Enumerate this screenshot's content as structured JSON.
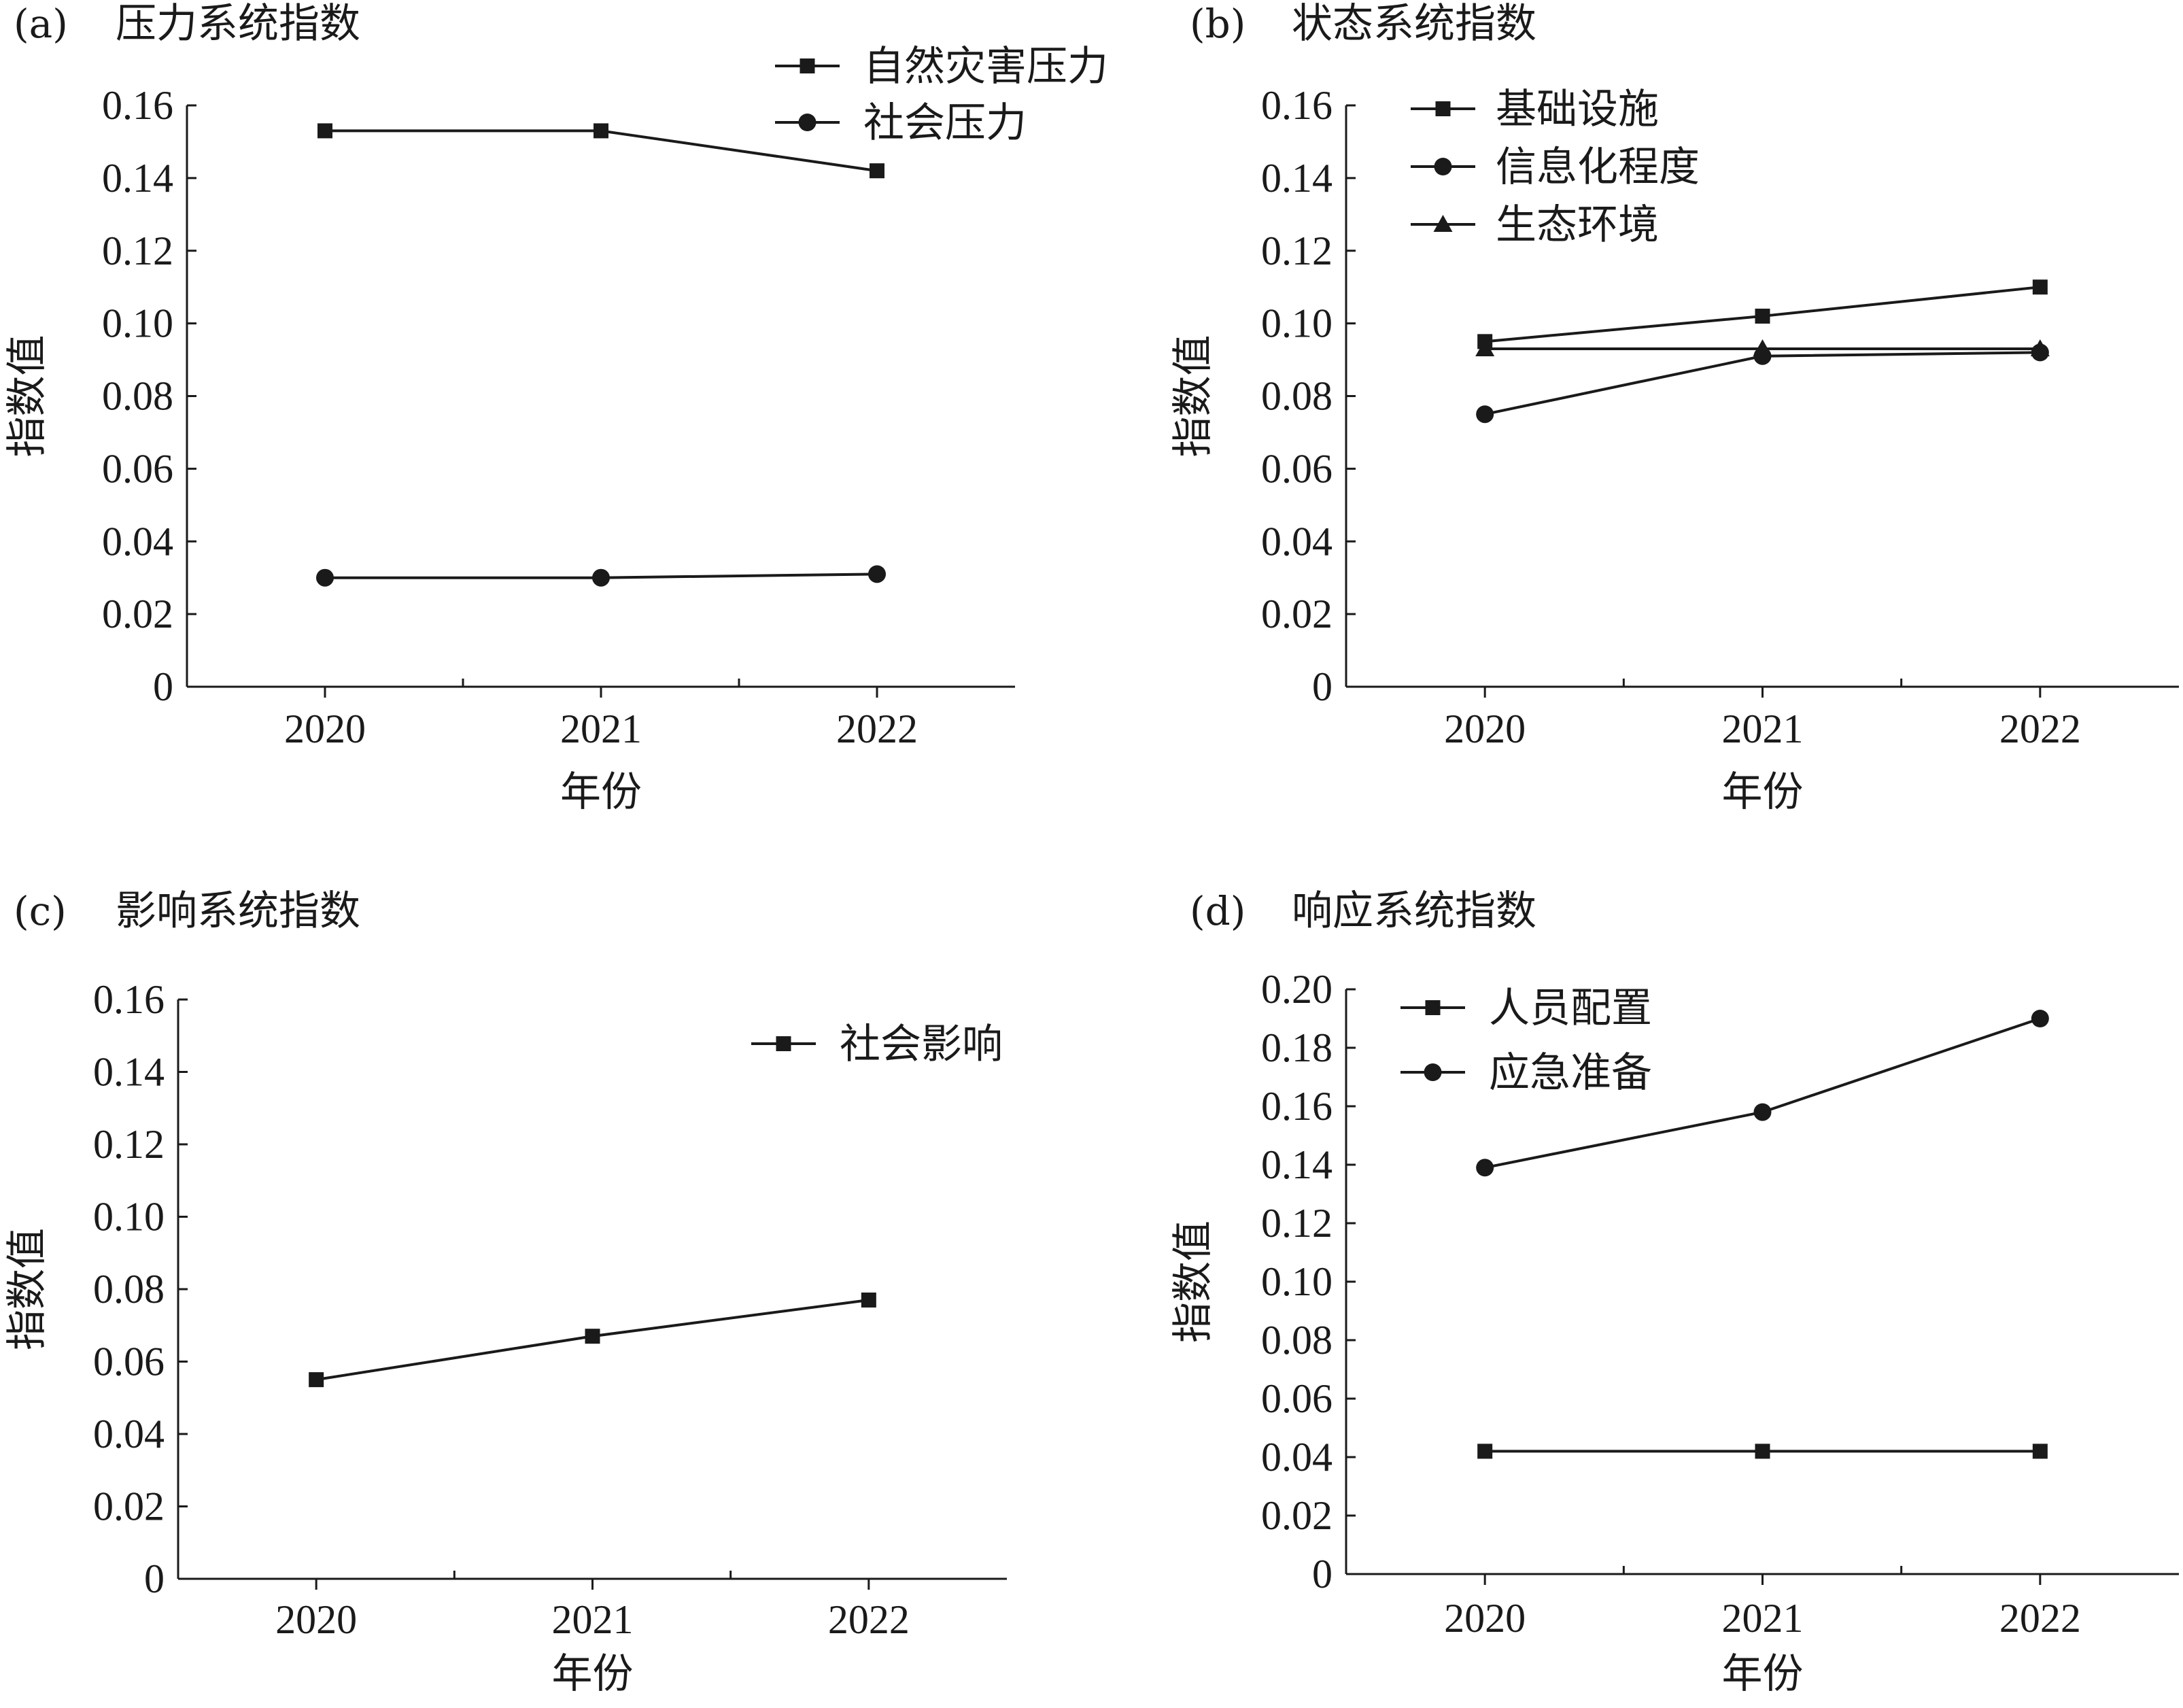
{
  "chart_data": [
    {
      "type": "line",
      "panel_letter": "(a)",
      "title": "压力系统指数",
      "xlabel": "年份",
      "ylabel": "指数值",
      "categories": [
        "2020",
        "2021",
        "2022"
      ],
      "yticks": [
        "0",
        "0.02",
        "0.04",
        "0.06",
        "0.08",
        "0.10",
        "0.12",
        "0.14",
        "0.16"
      ],
      "ylim": [
        0,
        0.16
      ],
      "legend_position": "top-right",
      "series": [
        {
          "name": "自然灾害压力",
          "marker": "square",
          "values": [
            0.153,
            0.153,
            0.142
          ]
        },
        {
          "name": "社会压力",
          "marker": "circle",
          "values": [
            0.03,
            0.03,
            0.031
          ]
        }
      ]
    },
    {
      "type": "line",
      "panel_letter": "(b)",
      "title": "状态系统指数",
      "xlabel": "年份",
      "ylabel": "指数值",
      "categories": [
        "2020",
        "2021",
        "2022"
      ],
      "yticks": [
        "0",
        "0.02",
        "0.04",
        "0.06",
        "0.08",
        "0.10",
        "0.12",
        "0.14",
        "0.16"
      ],
      "ylim": [
        0,
        0.16
      ],
      "legend_position": "top-left",
      "series": [
        {
          "name": "基础设施",
          "marker": "square",
          "values": [
            0.095,
            0.102,
            0.11
          ]
        },
        {
          "name": "信息化程度",
          "marker": "circle",
          "values": [
            0.075,
            0.091,
            0.092
          ]
        },
        {
          "name": "生态环境",
          "marker": "triangle",
          "values": [
            0.093,
            0.093,
            0.093
          ]
        }
      ]
    },
    {
      "type": "line",
      "panel_letter": "(c)",
      "title": "影响系统指数",
      "xlabel": "年份",
      "ylabel": "指数值",
      "categories": [
        "2020",
        "2021",
        "2022"
      ],
      "yticks": [
        "0",
        "0.02",
        "0.04",
        "0.06",
        "0.08",
        "0.10",
        "0.12",
        "0.14",
        "0.16"
      ],
      "ylim": [
        0,
        0.16
      ],
      "legend_position": "top-right",
      "series": [
        {
          "name": "社会影响",
          "marker": "square",
          "values": [
            0.055,
            0.067,
            0.077
          ]
        }
      ]
    },
    {
      "type": "line",
      "panel_letter": "(d)",
      "title": "响应系统指数",
      "xlabel": "年份",
      "ylabel": "指数值",
      "categories": [
        "2020",
        "2021",
        "2022"
      ],
      "yticks": [
        "0",
        "0.02",
        "0.04",
        "0.06",
        "0.08",
        "0.10",
        "0.12",
        "0.14",
        "0.16",
        "0.18",
        "0.20"
      ],
      "ylim": [
        0,
        0.2
      ],
      "legend_position": "top-left",
      "series": [
        {
          "name": "人员配置",
          "marker": "square",
          "values": [
            0.042,
            0.042,
            0.042
          ]
        },
        {
          "name": "应急准备",
          "marker": "circle",
          "values": [
            0.139,
            0.158,
            0.19
          ]
        }
      ]
    }
  ],
  "colors": {
    "ink": "#1a1a1a",
    "background": "#ffffff"
  }
}
